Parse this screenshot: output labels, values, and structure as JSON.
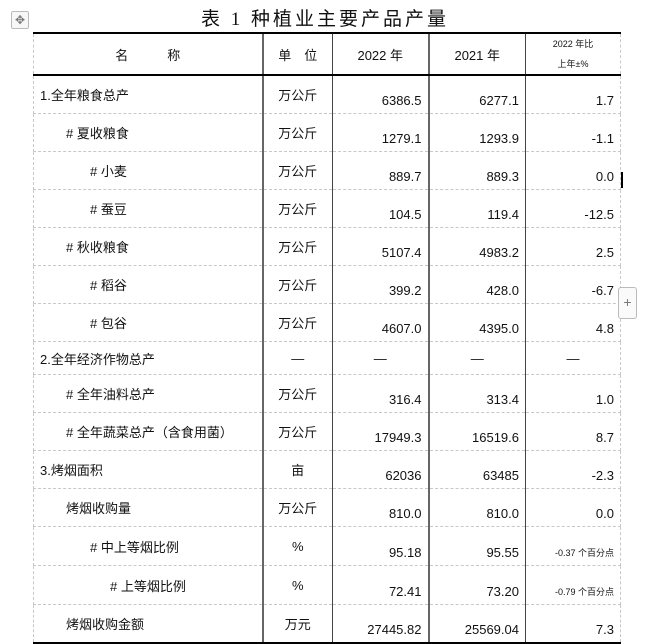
{
  "title": "表 1   种植业主要产品产量",
  "headers": {
    "name": "名　　　称",
    "unit": "单　位",
    "y2022": "2022 年",
    "y2021": "2021 年",
    "change_line1": "2022 年比",
    "change_line2": "上年±%"
  },
  "rows": [
    {
      "name": "1.全年粮食总产",
      "indent": 0,
      "unit": "万公斤",
      "y2022": "6386.5",
      "y2021": "6277.1",
      "change": "1.7"
    },
    {
      "name": "# 夏收粮食",
      "indent": 1,
      "unit": "万公斤",
      "y2022": "1279.1",
      "y2021": "1293.9",
      "change": "-1.1"
    },
    {
      "name": "# 小麦",
      "indent": 2,
      "unit": "万公斤",
      "y2022": "889.7",
      "y2021": "889.3",
      "change": "0.0"
    },
    {
      "name": "# 蚕豆",
      "indent": 2,
      "unit": "万公斤",
      "y2022": "104.5",
      "y2021": "119.4",
      "change": "-12.5"
    },
    {
      "name": "# 秋收粮食",
      "indent": 1,
      "unit": "万公斤",
      "y2022": "5107.4",
      "y2021": "4983.2",
      "change": "2.5"
    },
    {
      "name": "# 稻谷",
      "indent": 2,
      "unit": "万公斤",
      "y2022": "399.2",
      "y2021": "428.0",
      "change": "-6.7"
    },
    {
      "name": "# 包谷",
      "indent": 2,
      "unit": "万公斤",
      "y2022": "4607.0",
      "y2021": "4395.0",
      "change": "4.8"
    },
    {
      "name": "2.全年经济作物总产",
      "indent": 0,
      "unit": "—",
      "y2022": "—",
      "y2021": "—",
      "change": "—",
      "dash": true
    },
    {
      "name": "# 全年油料总产",
      "indent": 1,
      "unit": "万公斤",
      "y2022": "316.4",
      "y2021": "313.4",
      "change": "1.0"
    },
    {
      "name": "# 全年蔬菜总产（含食用菌）",
      "indent": 1,
      "unit": "万公斤",
      "y2022": "17949.3",
      "y2021": "16519.6",
      "change": "8.7"
    },
    {
      "name": "3.烤烟面积",
      "indent": 0,
      "unit": "亩",
      "y2022": "62036",
      "y2021": "63485",
      "change": "-2.3"
    },
    {
      "name": "烤烟收购量",
      "indent": 1,
      "unit": "万公斤",
      "y2022": "810.0",
      "y2021": "810.0",
      "change": "0.0"
    },
    {
      "name": "# 中上等烟比例",
      "indent": 2,
      "unit": "%",
      "y2022": "95.18",
      "y2021": "95.55",
      "change": "-0.37 个百分点",
      "small": true
    },
    {
      "name": "# 上等烟比例",
      "indent": 3,
      "unit": "%",
      "y2022": "72.41",
      "y2021": "73.20",
      "change": "-0.79 个百分点",
      "small": true
    },
    {
      "name": "烤烟收购金额",
      "indent": 1,
      "unit": "万元",
      "y2022": "27445.82",
      "y2021": "25569.04",
      "change": "7.3"
    }
  ]
}
